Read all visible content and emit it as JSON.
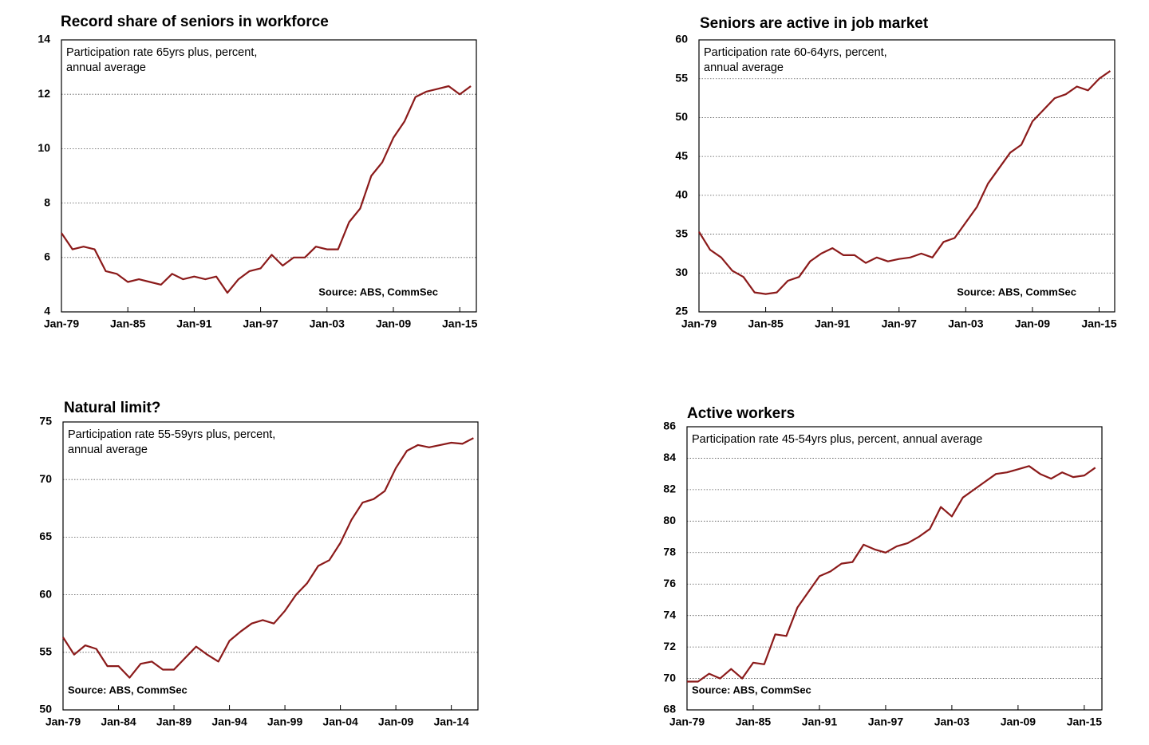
{
  "chart_data": [
    {
      "type": "line",
      "title": "Record share of seniors in workforce",
      "subtitle": [
        "Participation rate 65yrs plus, percent,",
        "annual average"
      ],
      "source": "Source: ABS, CommSec",
      "color": "#8b1a1a",
      "grid": true,
      "x": [
        1979,
        1980,
        1981,
        1982,
        1983,
        1984,
        1985,
        1986,
        1987,
        1988,
        1989,
        1990,
        1991,
        1992,
        1993,
        1994,
        1995,
        1996,
        1997,
        1998,
        1999,
        2000,
        2001,
        2002,
        2003,
        2004,
        2005,
        2006,
        2007,
        2008,
        2009,
        2010,
        2011,
        2012,
        2013,
        2014,
        2015,
        2016
      ],
      "values": [
        6.9,
        6.3,
        6.4,
        6.3,
        5.5,
        5.4,
        5.1,
        5.2,
        5.1,
        5.0,
        5.4,
        5.2,
        5.3,
        5.2,
        5.3,
        4.7,
        5.2,
        5.5,
        5.6,
        6.1,
        5.7,
        6.0,
        6.0,
        6.4,
        6.3,
        6.3,
        7.3,
        7.8,
        9.0,
        9.5,
        10.4,
        11.0,
        11.9,
        12.1,
        12.2,
        12.3,
        12.0,
        12.3
      ],
      "xlim": [
        1979,
        2016.5
      ],
      "xticks": [
        {
          "value": 1979,
          "label": "Jan-79"
        },
        {
          "value": 1985,
          "label": "Jan-85"
        },
        {
          "value": 1991,
          "label": "Jan-91"
        },
        {
          "value": 1997,
          "label": "Jan-97"
        },
        {
          "value": 2003,
          "label": "Jan-03"
        },
        {
          "value": 2009,
          "label": "Jan-09"
        },
        {
          "value": 2015,
          "label": "Jan-15"
        }
      ],
      "ylim": [
        4,
        14
      ],
      "yticks": [
        4,
        6,
        8,
        10,
        12,
        14
      ]
    },
    {
      "type": "line",
      "title": "Seniors are active in job market",
      "subtitle": [
        "Participation rate 60-64yrs, percent,",
        "annual average"
      ],
      "source": "Source: ABS, CommSec",
      "color": "#8b1a1a",
      "grid": true,
      "x": [
        1979,
        1980,
        1981,
        1982,
        1983,
        1984,
        1985,
        1986,
        1987,
        1988,
        1989,
        1990,
        1991,
        1992,
        1993,
        1994,
        1995,
        1996,
        1997,
        1998,
        1999,
        2000,
        2001,
        2002,
        2003,
        2004,
        2005,
        2006,
        2007,
        2008,
        2009,
        2010,
        2011,
        2012,
        2013,
        2014,
        2015,
        2016
      ],
      "values": [
        35.3,
        33,
        32,
        30.3,
        29.5,
        27.5,
        27.3,
        27.5,
        29,
        29.5,
        31.5,
        32.5,
        33.2,
        32.3,
        32.3,
        31.3,
        32,
        31.5,
        31.8,
        32,
        32.5,
        32,
        34,
        34.5,
        36.5,
        38.5,
        41.5,
        43.5,
        45.5,
        46.5,
        49.5,
        51,
        52.5,
        53,
        54,
        53.5,
        55,
        56
      ],
      "xlim": [
        1979,
        2016.4
      ],
      "xticks": [
        {
          "value": 1979,
          "label": "Jan-79"
        },
        {
          "value": 1985,
          "label": "Jan-85"
        },
        {
          "value": 1991,
          "label": "Jan-91"
        },
        {
          "value": 1997,
          "label": "Jan-97"
        },
        {
          "value": 2003,
          "label": "Jan-03"
        },
        {
          "value": 2009,
          "label": "Jan-09"
        },
        {
          "value": 2015,
          "label": "Jan-15"
        }
      ],
      "ylim": [
        25,
        60
      ],
      "yticks": [
        25,
        30,
        35,
        40,
        45,
        50,
        55,
        60
      ]
    },
    {
      "type": "line",
      "title": "Natural limit?",
      "subtitle": [
        "Participation rate 55-59yrs plus, percent,",
        "annual average"
      ],
      "source": "Source: ABS, CommSec",
      "color": "#8b1a1a",
      "grid": true,
      "x": [
        1979,
        1980,
        1981,
        1982,
        1983,
        1984,
        1985,
        1986,
        1987,
        1988,
        1989,
        1990,
        1991,
        1992,
        1993,
        1994,
        1995,
        1996,
        1997,
        1998,
        1999,
        2000,
        2001,
        2002,
        2003,
        2004,
        2005,
        2006,
        2007,
        2008,
        2009,
        2010,
        2011,
        2012,
        2013,
        2014,
        2015,
        2016
      ],
      "values": [
        56.3,
        54.8,
        55.6,
        55.3,
        53.8,
        53.8,
        52.8,
        54,
        54.2,
        53.5,
        53.5,
        54.5,
        55.5,
        54.8,
        54.2,
        56,
        56.8,
        57.5,
        57.8,
        57.5,
        58.6,
        60,
        61,
        62.5,
        63,
        64.5,
        66.5,
        68,
        68.3,
        69,
        71,
        72.5,
        73,
        72.8,
        73,
        73.2,
        73.1,
        73.6
      ],
      "xlim": [
        1979,
        2016.4
      ],
      "xticks": [
        {
          "value": 1979,
          "label": "Jan-79"
        },
        {
          "value": 1984,
          "label": "Jan-84"
        },
        {
          "value": 1989,
          "label": "Jan-89"
        },
        {
          "value": 1994,
          "label": "Jan-94"
        },
        {
          "value": 1999,
          "label": "Jan-99"
        },
        {
          "value": 2004,
          "label": "Jan-04"
        },
        {
          "value": 2009,
          "label": "Jan-09"
        },
        {
          "value": 2014,
          "label": "Jan-14"
        }
      ],
      "ylim": [
        50,
        75
      ],
      "yticks": [
        50,
        55,
        60,
        65,
        70,
        75
      ]
    },
    {
      "type": "line",
      "title": "Active workers",
      "subtitle": [
        "Participation rate 45-54yrs plus, percent, annual average"
      ],
      "source": "Source: ABS, CommSec",
      "color": "#8b1a1a",
      "grid": true,
      "x": [
        1979,
        1980,
        1981,
        1982,
        1983,
        1984,
        1985,
        1986,
        1987,
        1988,
        1989,
        1990,
        1991,
        1992,
        1993,
        1994,
        1995,
        1996,
        1997,
        1998,
        1999,
        2000,
        2001,
        2002,
        2003,
        2004,
        2005,
        2006,
        2007,
        2008,
        2009,
        2010,
        2011,
        2012,
        2013,
        2014,
        2015,
        2016
      ],
      "values": [
        69.8,
        69.8,
        70.3,
        70.0,
        70.6,
        70.0,
        71,
        70.9,
        72.8,
        72.7,
        74.5,
        75.5,
        76.5,
        76.8,
        77.3,
        77.4,
        78.5,
        78.2,
        78.0,
        78.4,
        78.6,
        79,
        79.5,
        80.9,
        80.3,
        81.5,
        82,
        82.5,
        83,
        83.1,
        83.3,
        83.5,
        83,
        82.7,
        83.1,
        82.8,
        82.9,
        83.4
      ],
      "xlim": [
        1979,
        2016.6
      ],
      "xticks": [
        {
          "value": 1979,
          "label": "Jan-79"
        },
        {
          "value": 1985,
          "label": "Jan-85"
        },
        {
          "value": 1991,
          "label": "Jan-91"
        },
        {
          "value": 1997,
          "label": "Jan-97"
        },
        {
          "value": 2003,
          "label": "Jan-03"
        },
        {
          "value": 2009,
          "label": "Jan-09"
        },
        {
          "value": 2015,
          "label": "Jan-15"
        }
      ],
      "ylim": [
        68,
        86
      ],
      "yticks": [
        68,
        70,
        72,
        74,
        76,
        78,
        80,
        82,
        84,
        86
      ]
    }
  ]
}
